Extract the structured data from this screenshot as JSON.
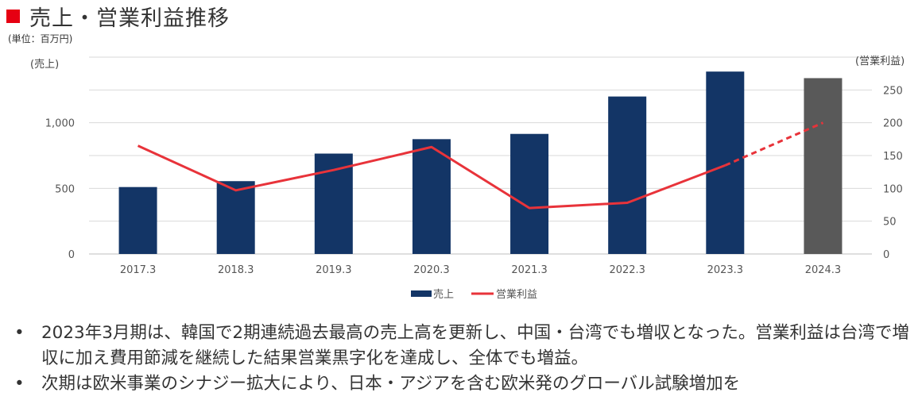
{
  "title": "売上・営業利益推移",
  "unit_note": "(単位：百万円)",
  "colors": {
    "title_square": "#e60012",
    "sales_bar": "#133566",
    "sales_bar_forecast": "#595959",
    "profit_line": "#e8333a"
  },
  "chart_data": {
    "type": "bar",
    "categories": [
      "2017.3",
      "2018.3",
      "2019.3",
      "2020.3",
      "2021.3",
      "2022.3",
      "2023.3",
      "2024.3"
    ],
    "series": [
      {
        "name": "売上",
        "type": "bar",
        "axis": "left",
        "values": [
          510,
          555,
          765,
          875,
          915,
          1200,
          1390,
          1340
        ],
        "forecast_from_index": 7
      },
      {
        "name": "営業利益",
        "type": "line",
        "axis": "right",
        "values": [
          165,
          97,
          128,
          163,
          70,
          78,
          135,
          200
        ],
        "dashed_from_index": 6
      }
    ],
    "yaxis_left": {
      "label": "(売上)",
      "ylim": [
        0,
        1500
      ],
      "ticks": [
        0,
        500,
        1000
      ],
      "tick_labels": [
        "0",
        "500",
        "1,000"
      ]
    },
    "yaxis_right": {
      "label": "(営業利益)",
      "ylim": [
        0,
        300
      ],
      "ticks": [
        0,
        50,
        100,
        150,
        200,
        250
      ],
      "tick_labels": [
        "0",
        "50",
        "100",
        "150",
        "200",
        "250"
      ]
    },
    "grid": true,
    "legend": {
      "placement": "bottom",
      "entries": [
        "売上",
        "営業利益"
      ]
    }
  },
  "bullets": [
    "2023年3月期は、韓国で2期連続過去最高の売上高を更新し、中国・台湾でも増収となった。営業利益は台湾で増収に加え費用節減を継続した結果営業黒字化を達成し、全体でも増益。",
    "次期は欧米事業のシナジー拡大により、日本・アジアを含む欧米発のグローバル試験増加を"
  ],
  "bullet_symbol": "•"
}
